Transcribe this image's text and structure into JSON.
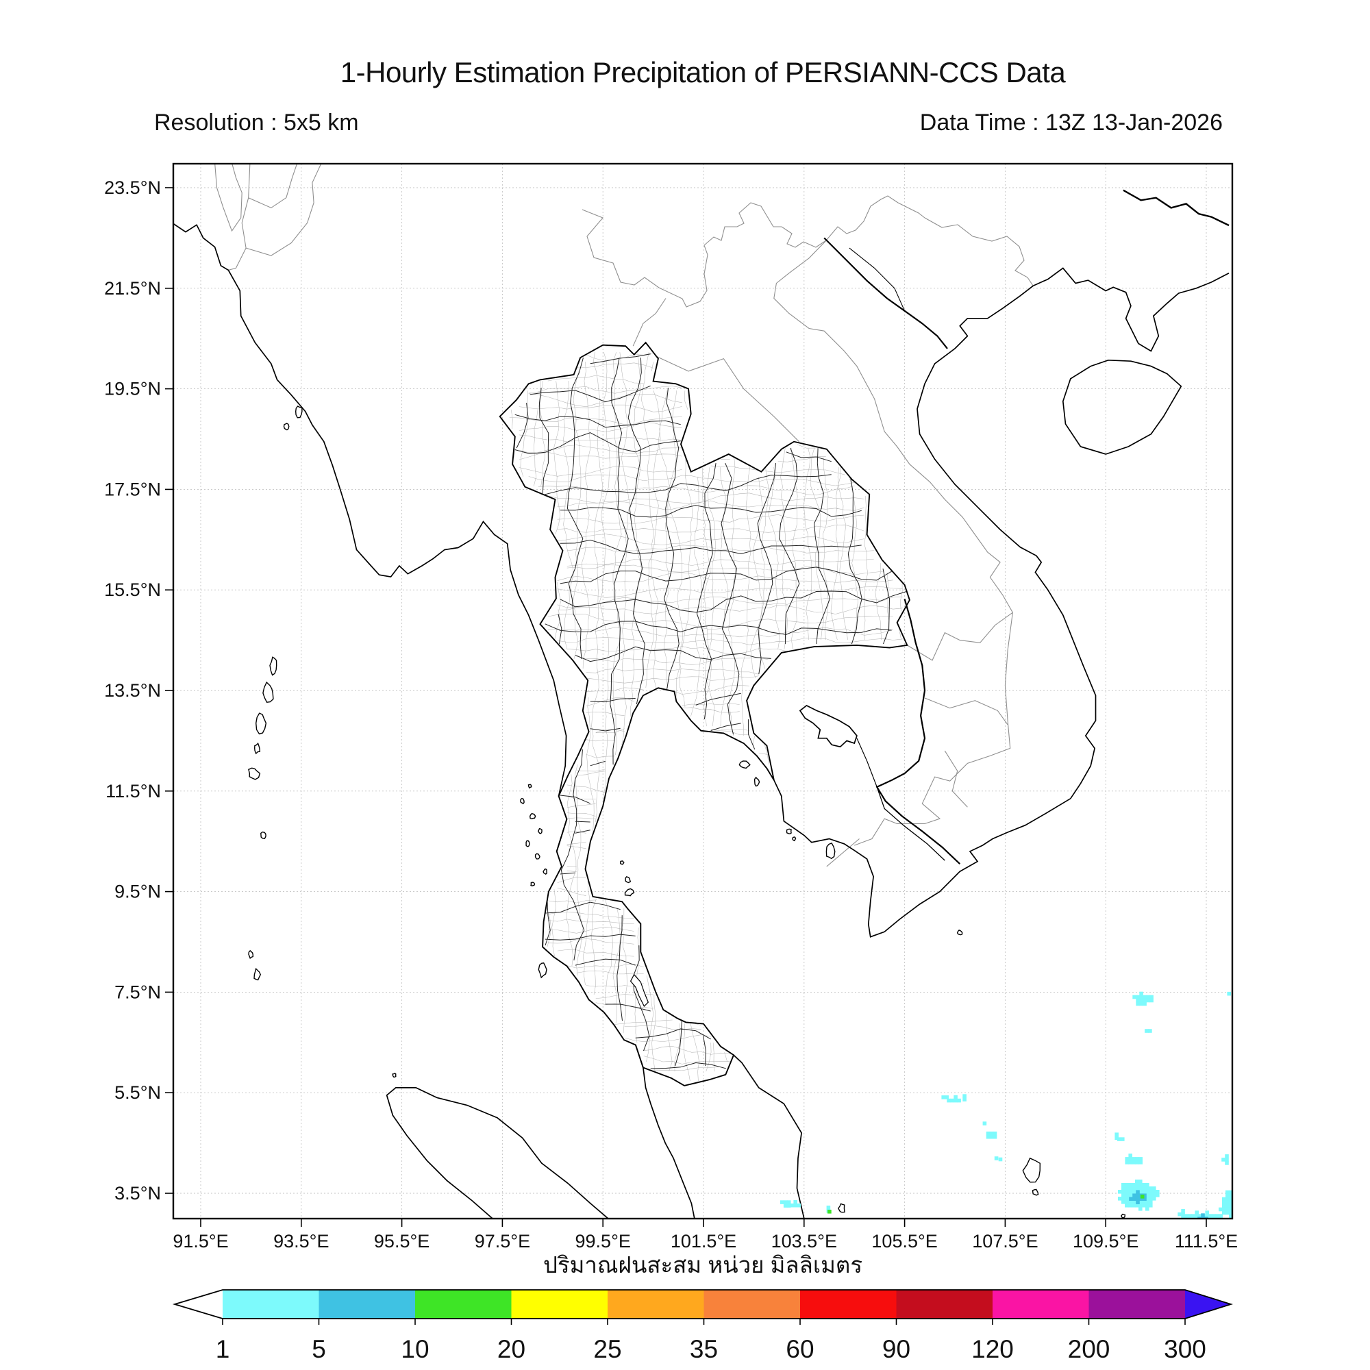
{
  "header": {
    "title": "1-Hourly Estimation Precipitation of PERSIANN-CCS Data",
    "resolution": "Resolution : 5x5 km",
    "data_time": "Data Time : 13Z 13-Jan-2026"
  },
  "axes": {
    "lon_labels": [
      "91.5°E",
      "93.5°E",
      "95.5°E",
      "97.5°E",
      "99.5°E",
      "101.5°E",
      "103.5°E",
      "105.5°E",
      "107.5°E",
      "109.5°E",
      "111.5°E"
    ],
    "lat_labels": [
      "23.5°N",
      "21.5°N",
      "19.5°N",
      "17.5°N",
      "15.5°N",
      "13.5°N",
      "11.5°N",
      "9.5°N",
      "7.5°N",
      "5.5°N",
      "3.5°N"
    ],
    "caption": "ปริมาณฝนสะสม หน่วย มิลลิเมตร"
  },
  "colorbar": {
    "levels": [
      "1",
      "5",
      "10",
      "20",
      "25",
      "35",
      "60",
      "90",
      "120",
      "200",
      "300"
    ],
    "segment_colors": [
      "#7dfafc",
      "#3fc2e3",
      "#3ee526",
      "#ffff00",
      "#ffa81e",
      "#f8823b",
      "#f70d0d",
      "#c40d1e",
      "#fa14a4",
      "#9b119b"
    ],
    "under_color": "#ffffff",
    "over_color": "#3a13f2"
  },
  "chart_data": {
    "type": "heatmap",
    "title": "1-Hourly Estimation Precipitation of PERSIANN-CCS Data",
    "resolution": "5x5 km",
    "data_time": "13Z 13-Jan-2026",
    "units_label": "ปริมาณฝนสะสม หน่วย มิลลิเมตร",
    "units": "mm",
    "lon_range": [
      91.0,
      112.0
    ],
    "lat_range": [
      3.0,
      24.0
    ],
    "grid": true,
    "legend_position": "bottom",
    "legend_boundaries_mm": [
      1,
      5,
      10,
      20,
      25,
      35,
      60,
      90,
      120,
      200,
      300
    ],
    "precipitation_cells": [
      {
        "lon": 110.21,
        "lat": 7.4,
        "mm": 1,
        "w": 26,
        "h": 16
      },
      {
        "lon": 110.33,
        "lat": 6.78,
        "mm": 1,
        "w": 8,
        "h": 8
      },
      {
        "lon": 106.24,
        "lat": 5.46,
        "mm": 1,
        "w": 11,
        "h": 8
      },
      {
        "lon": 106.45,
        "lat": 5.39,
        "mm": 1,
        "w": 16,
        "h": 9
      },
      {
        "lon": 106.64,
        "lat": 5.43,
        "mm": 1,
        "w": 8,
        "h": 6
      },
      {
        "lon": 107.04,
        "lat": 4.94,
        "mm": 1,
        "w": 8,
        "h": 8
      },
      {
        "lon": 107.17,
        "lat": 4.7,
        "mm": 1,
        "w": 17,
        "h": 14
      },
      {
        "lon": 107.26,
        "lat": 4.26,
        "mm": 1,
        "w": 6,
        "h": 5
      },
      {
        "lon": 107.34,
        "lat": 4.24,
        "mm": 1,
        "w": 5,
        "h": 4
      },
      {
        "lon": 109.66,
        "lat": 4.7,
        "mm": 1,
        "w": 7,
        "h": 11
      },
      {
        "lon": 109.77,
        "lat": 4.62,
        "mm": 1,
        "w": 6,
        "h": 9
      },
      {
        "lon": 110.02,
        "lat": 4.2,
        "mm": 1,
        "w": 30,
        "h": 13
      },
      {
        "lon": 110.11,
        "lat": 3.5,
        "mm": 1,
        "w": 54,
        "h": 40
      },
      {
        "lon": 110.14,
        "lat": 3.46,
        "mm": 5,
        "w": 26,
        "h": 15
      },
      {
        "lon": 110.17,
        "lat": 3.5,
        "mm": 10,
        "w": 7,
        "h": 4
      },
      {
        "lon": 111.87,
        "lat": 4.18,
        "mm": 1,
        "w": 10,
        "h": 14
      },
      {
        "lon": 111.95,
        "lat": 3.3,
        "mm": 1,
        "w": 30,
        "h": 38
      },
      {
        "lon": 111.41,
        "lat": 3.06,
        "mm": 1,
        "w": 60,
        "h": 14
      },
      {
        "lon": 111.38,
        "lat": 3.04,
        "mm": 5,
        "w": 18,
        "h": 9
      },
      {
        "lon": 111.65,
        "lat": 3.01,
        "mm": 10,
        "w": 5,
        "h": 4
      },
      {
        "lon": 111.0,
        "lat": 3.12,
        "mm": 1,
        "w": 10,
        "h": 10
      },
      {
        "lon": 111.9,
        "lat": 7.52,
        "mm": 1,
        "w": 8,
        "h": 8
      },
      {
        "lon": 103.12,
        "lat": 3.36,
        "mm": 1,
        "w": 14,
        "h": 10
      },
      {
        "lon": 103.29,
        "lat": 3.31,
        "mm": 1,
        "w": 10,
        "h": 8
      },
      {
        "lon": 103.94,
        "lat": 3.2,
        "mm": 1,
        "w": 9,
        "h": 8
      },
      {
        "lon": 103.94,
        "lat": 3.2,
        "mm": 10,
        "w": 4,
        "h": 3
      }
    ]
  }
}
